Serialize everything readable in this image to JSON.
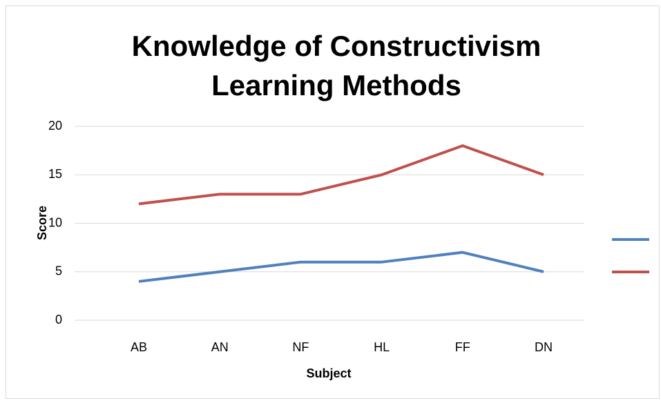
{
  "chart_data": {
    "type": "line",
    "title": "Knowledge of Constructivism Learning Methods",
    "x_label": "Subject",
    "y_label": "Score",
    "categories": [
      "AB",
      "AN",
      "NF",
      "HL",
      "FF",
      "DN"
    ],
    "series": [
      {
        "color": "#4f81bd",
        "values": [
          4,
          5,
          6,
          6,
          7,
          5
        ]
      },
      {
        "color": "#c0504d",
        "values": [
          12,
          13,
          13,
          15,
          18,
          15
        ]
      }
    ],
    "ylim": [
      0,
      20
    ],
    "yticks": [
      0,
      5,
      10,
      15,
      20
    ],
    "grid": true,
    "legend": "right"
  }
}
